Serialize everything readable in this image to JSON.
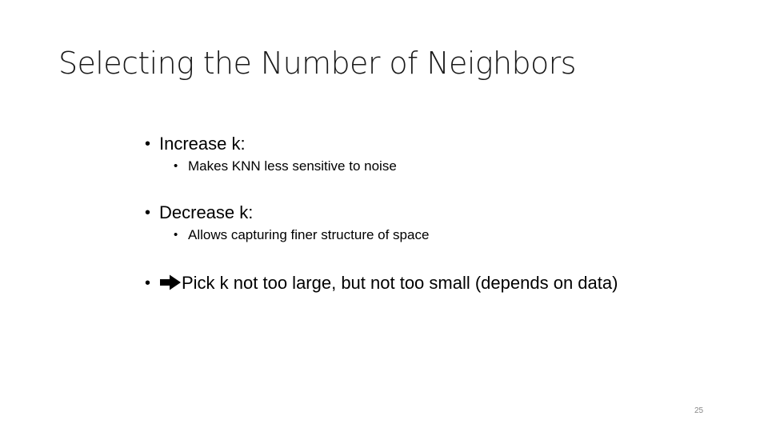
{
  "slide": {
    "title": "Selecting the Number of Neighbors",
    "bullets": [
      {
        "text": "Increase k:",
        "sub": [
          "Makes KNN less sensitive to noise"
        ]
      },
      {
        "text": "Decrease k:",
        "sub": [
          "Allows capturing finer structure of space"
        ]
      },
      {
        "icon": "arrow-right-icon",
        "text": "Pick k not too large, but not too small (depends on data)",
        "sub": []
      }
    ],
    "page_number": "25"
  }
}
